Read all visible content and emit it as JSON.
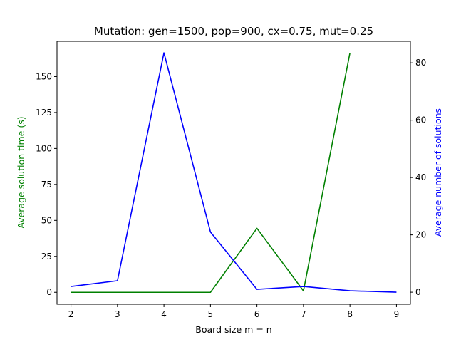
{
  "chart_data": {
    "type": "line",
    "title": "Mutation: gen=1500, pop=900, cx=0.75, mut=0.25",
    "xlabel": "Board size m = n",
    "ylabel_left": "Average solution time (s)",
    "ylabel_right": "Average number of solutions",
    "x": [
      2,
      3,
      4,
      5,
      6,
      7,
      8,
      9
    ],
    "xlim": [
      1.7,
      9.3
    ],
    "ylim_left": [
      -8.3,
      174.5
    ],
    "ylim_right": [
      -4.2,
      87.5
    ],
    "x_ticks": [
      "2",
      "3",
      "4",
      "5",
      "6",
      "7",
      "8",
      "9"
    ],
    "y_ticks_left": [
      "0",
      "25",
      "50",
      "75",
      "100",
      "125",
      "150"
    ],
    "y_ticks_right": [
      "0",
      "20",
      "40",
      "60",
      "80"
    ],
    "grid": false,
    "series": [
      {
        "axis": "left",
        "color": "#008000",
        "x": [
          2,
          3,
          4,
          5,
          6,
          7,
          8
        ],
        "values": [
          0,
          0,
          0,
          0,
          44.5,
          1,
          166.5
        ]
      },
      {
        "axis": "right",
        "color": "#0000ff",
        "x": [
          2,
          3,
          4,
          5,
          6,
          7,
          8,
          9
        ],
        "values": [
          2,
          4,
          83.5,
          21,
          1,
          2,
          0.5,
          0
        ]
      }
    ]
  }
}
